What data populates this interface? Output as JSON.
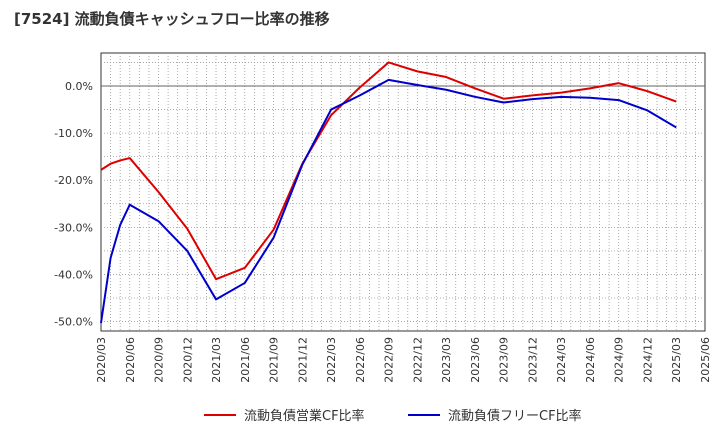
{
  "title": "[7524]  流動負債キャッシュフロー比率の推移",
  "chart_data": {
    "type": "line",
    "title": "[7524]  流動負債キャッシュフロー比率の推移",
    "xlabel": "",
    "ylabel": "",
    "ylim": [
      -52,
      7
    ],
    "yticks": [
      0,
      -10,
      -20,
      -30,
      -40,
      -50
    ],
    "ytick_labels": [
      "0.0%",
      "-10.0%",
      "-20.0%",
      "-30.0%",
      "-40.0%",
      "-50.0%"
    ],
    "xticks": [
      "2020/03",
      "2020/06",
      "2020/09",
      "2020/12",
      "2021/03",
      "2021/06",
      "2021/09",
      "2021/12",
      "2022/03",
      "2022/06",
      "2022/09",
      "2022/12",
      "2023/03",
      "2023/06",
      "2023/09",
      "2023/12",
      "2024/03",
      "2024/06",
      "2024/09",
      "2024/12",
      "2025/03",
      "2025/06"
    ],
    "grid": true,
    "legend_position": "bottom",
    "series": [
      {
        "name": "流動負債営業CF比率",
        "color": "#dd0000",
        "points": [
          [
            "2020/03",
            -17.8
          ],
          [
            "2020/04",
            -16.5
          ],
          [
            "2020/05",
            -15.8
          ],
          [
            "2020/06",
            -15.3
          ],
          [
            "2020/09",
            -22.5
          ],
          [
            "2020/12",
            -30.3
          ],
          [
            "2021/03",
            -41.0
          ],
          [
            "2021/06",
            -38.6
          ],
          [
            "2021/09",
            -30.5
          ],
          [
            "2021/12",
            -16.5
          ],
          [
            "2022/03",
            -6.2
          ],
          [
            "2022/06",
            -0.3
          ],
          [
            "2022/09",
            5.0
          ],
          [
            "2022/12",
            3.1
          ],
          [
            "2023/03",
            1.9
          ],
          [
            "2023/06",
            -0.5
          ],
          [
            "2023/09",
            -2.7
          ],
          [
            "2023/12",
            -2.0
          ],
          [
            "2024/03",
            -1.4
          ],
          [
            "2024/06",
            -0.5
          ],
          [
            "2024/09",
            0.6
          ],
          [
            "2024/12",
            -1.1
          ],
          [
            "2025/03",
            -3.3
          ]
        ]
      },
      {
        "name": "流動負債フリーCF比率",
        "color": "#0000cc",
        "points": [
          [
            "2020/03",
            -50.3
          ],
          [
            "2020/04",
            -36.5
          ],
          [
            "2020/05",
            -29.5
          ],
          [
            "2020/06",
            -25.2
          ],
          [
            "2020/09",
            -28.7
          ],
          [
            "2020/12",
            -35.0
          ],
          [
            "2021/03",
            -45.3
          ],
          [
            "2021/06",
            -41.8
          ],
          [
            "2021/09",
            -32.2
          ],
          [
            "2021/12",
            -16.7
          ],
          [
            "2022/03",
            -5.0
          ],
          [
            "2022/06",
            -2.0
          ],
          [
            "2022/09",
            1.3
          ],
          [
            "2022/12",
            0.2
          ],
          [
            "2023/03",
            -0.8
          ],
          [
            "2023/06",
            -2.3
          ],
          [
            "2023/09",
            -3.5
          ],
          [
            "2023/12",
            -2.8
          ],
          [
            "2024/03",
            -2.3
          ],
          [
            "2024/06",
            -2.5
          ],
          [
            "2024/09",
            -3.0
          ],
          [
            "2024/12",
            -5.2
          ],
          [
            "2025/03",
            -8.8
          ]
        ]
      }
    ]
  }
}
